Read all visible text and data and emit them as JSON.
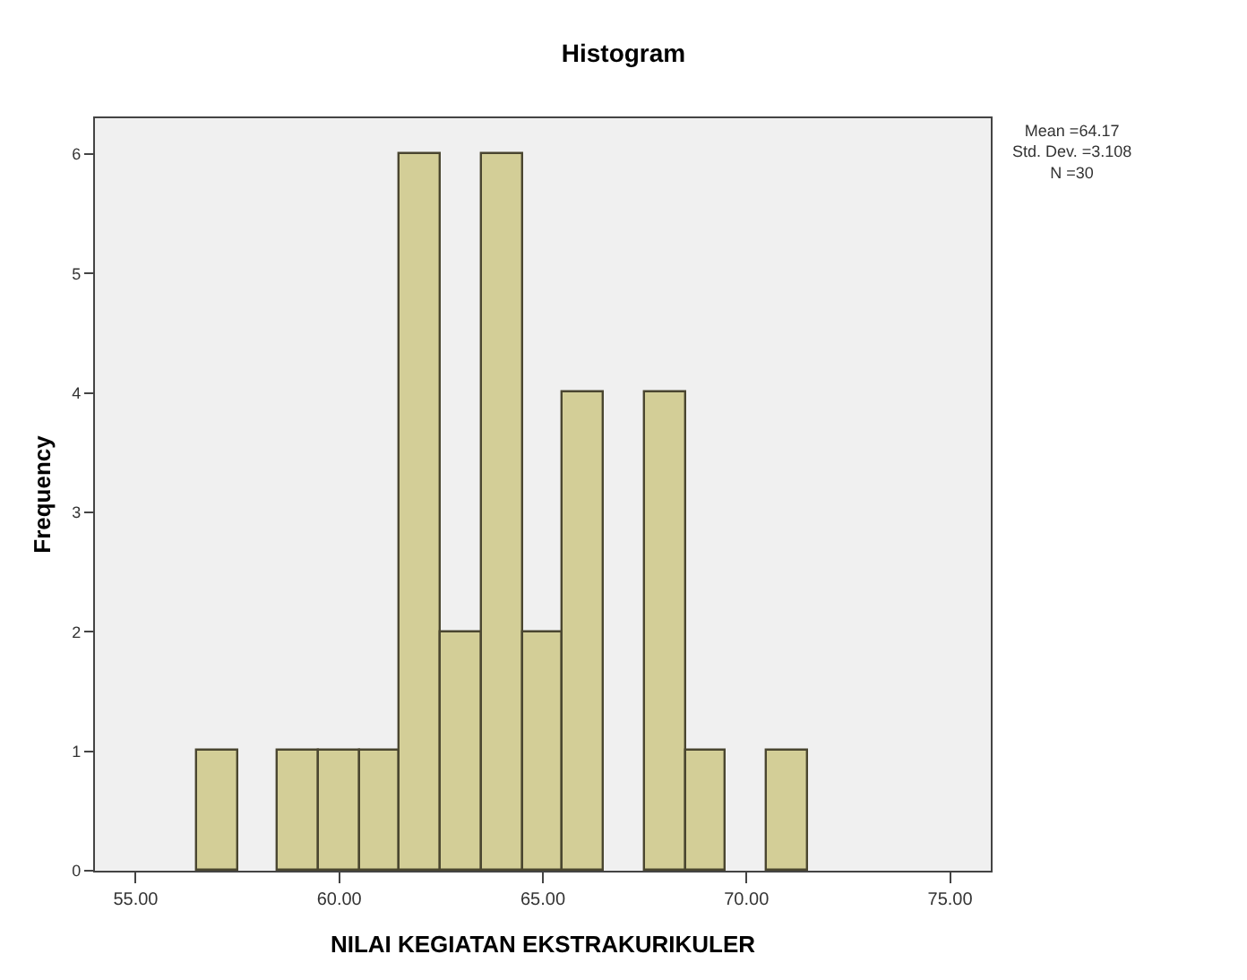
{
  "chart_data": {
    "type": "histogram",
    "title": "Histogram",
    "xlabel": "NILAI KEGIATAN EKSTRAKURIKULER",
    "ylabel": "Frequency",
    "bins": [
      56.5,
      57.5,
      58.5,
      59.5,
      60.5,
      61.5,
      62.5,
      63.5,
      64.5,
      65.5,
      66.5,
      67.5,
      68.5,
      69.5,
      70.5,
      71.5
    ],
    "values": [
      1,
      0,
      1,
      1,
      1,
      6,
      2,
      6,
      2,
      4,
      0,
      4,
      1,
      0,
      1
    ],
    "color": "#d3ce97",
    "xlim": [
      54,
      76
    ],
    "xticks": [
      {
        "value": 55,
        "label": "55.00"
      },
      {
        "value": 60,
        "label": "60.00"
      },
      {
        "value": 65,
        "label": "65.00"
      },
      {
        "value": 70,
        "label": "70.00"
      },
      {
        "value": 75,
        "label": "75.00"
      }
    ],
    "ylim": [
      0,
      6.3
    ],
    "yticks": [
      0,
      1,
      2,
      3,
      4,
      5,
      6
    ],
    "grid": false,
    "annotations": [
      "Mean =64.17\nStd. Dev. =3.108\nN =30"
    ]
  }
}
